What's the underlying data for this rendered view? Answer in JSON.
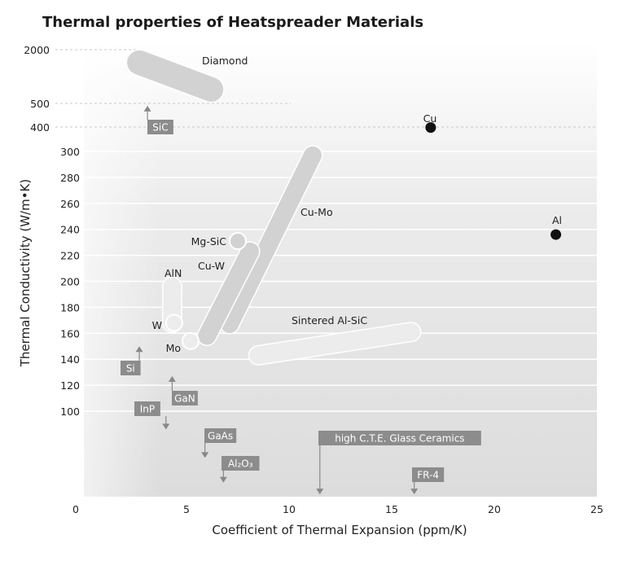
{
  "chart_data": {
    "type": "scatter",
    "title": "Thermal properties of Heatspreader Materials",
    "xlabel": "Coefficient of Thermal Expansion (ppm/K)",
    "ylabel": "Thermal Conductivity (W/m•K)",
    "xlim": [
      0,
      25
    ],
    "xticks": [
      "0",
      "5",
      "10",
      "15",
      "20",
      "25"
    ],
    "yticks": [
      "100",
      "120",
      "140",
      "160",
      "180",
      "200",
      "220",
      "240",
      "260",
      "280",
      "300",
      "400",
      "500",
      "2000"
    ],
    "grid": true,
    "ranges": [
      {
        "name": "Diamond",
        "x": [
          2.7,
          6.2
        ],
        "y": [
          1640,
          890
        ],
        "style": "range"
      },
      {
        "name": "Cu-Mo",
        "x": [
          7.1,
          11.15
        ],
        "y": [
          167,
          297
        ],
        "style": "range"
      },
      {
        "name": "Cu-W",
        "x": [
          6.0,
          8.1
        ],
        "y": [
          158,
          223
        ],
        "style": "range"
      },
      {
        "name": "AlN",
        "x": [
          4.3,
          4.3
        ],
        "y": [
          196,
          168
        ],
        "style": "range-light"
      },
      {
        "name": "Sintered Al-SiC",
        "x": [
          8.5,
          15.95
        ],
        "y": [
          143,
          161
        ],
        "style": "range-light"
      }
    ],
    "points": [
      {
        "name": "Mg-SiC",
        "x": 7.5,
        "y": 231,
        "style": "circle"
      },
      {
        "name": "W",
        "x": 4.4,
        "y": 168,
        "style": "circle-light"
      },
      {
        "name": "Mo",
        "x": 5.2,
        "y": 154,
        "style": "circle-light"
      },
      {
        "name": "Cu",
        "x": 16.9,
        "y": 398,
        "style": "dot"
      },
      {
        "name": "Al",
        "x": 23.0,
        "y": 236,
        "style": "dot"
      }
    ],
    "arrows": [
      {
        "name": "SiC",
        "x": 3.1,
        "y": 490,
        "direction": "up"
      },
      {
        "name": "Si",
        "x": 2.7,
        "y": 150,
        "direction": "up"
      },
      {
        "name": "GaN",
        "x": 4.3,
        "y": 127,
        "direction": "up"
      },
      {
        "name": "InP",
        "x": 4.0,
        "y": 86,
        "direction": "down"
      },
      {
        "name": "GaAs",
        "x": 5.9,
        "y": 64,
        "direction": "down"
      },
      {
        "name": "Al2O3",
        "x": 6.8,
        "y": 45,
        "direction": "down"
      },
      {
        "name": "high C.T.E. Glass Ceramics",
        "x": 11.5,
        "y": 36,
        "direction": "down"
      },
      {
        "name": "FR-4",
        "x": 16.1,
        "y": 36,
        "direction": "down"
      }
    ]
  }
}
